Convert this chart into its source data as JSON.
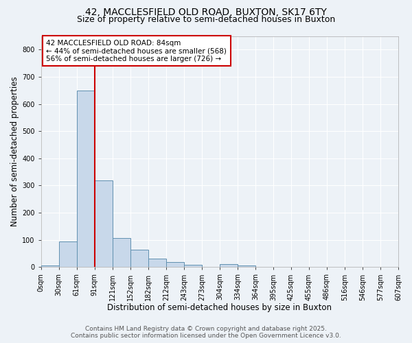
{
  "title_line1": "42, MACCLESFIELD OLD ROAD, BUXTON, SK17 6TY",
  "title_line2": "Size of property relative to semi-detached houses in Buxton",
  "xlabel": "Distribution of semi-detached houses by size in Buxton",
  "ylabel": "Number of semi-detached properties",
  "bins": [
    "0sqm",
    "30sqm",
    "61sqm",
    "91sqm",
    "121sqm",
    "152sqm",
    "182sqm",
    "212sqm",
    "243sqm",
    "273sqm",
    "304sqm",
    "334sqm",
    "364sqm",
    "395sqm",
    "425sqm",
    "455sqm",
    "486sqm",
    "516sqm",
    "546sqm",
    "577sqm",
    "607sqm"
  ],
  "values": [
    5,
    93,
    649,
    320,
    108,
    63,
    30,
    18,
    8,
    0,
    10,
    5,
    2,
    0,
    0,
    0,
    0,
    0,
    0,
    0
  ],
  "bar_color": "#c8d8ea",
  "bar_edge_color": "#6090b0",
  "vline_x_bin_index": 3,
  "vline_color": "#cc0000",
  "annotation_text": "42 MACCLESFIELD OLD ROAD: 84sqm\n← 44% of semi-detached houses are smaller (568)\n56% of semi-detached houses are larger (726) →",
  "box_color": "#ffffff",
  "box_edge_color": "#cc0000",
  "ylim": [
    0,
    850
  ],
  "yticks": [
    0,
    100,
    200,
    300,
    400,
    500,
    600,
    700,
    800
  ],
  "footer_line1": "Contains HM Land Registry data © Crown copyright and database right 2025.",
  "footer_line2": "Contains public sector information licensed under the Open Government Licence v3.0.",
  "background_color": "#edf2f7",
  "plot_background": "#edf2f7",
  "grid_color": "#ffffff",
  "title_fontsize": 10,
  "subtitle_fontsize": 9,
  "axis_label_fontsize": 8.5,
  "tick_fontsize": 7,
  "annotation_fontsize": 7.5,
  "footer_fontsize": 6.5
}
